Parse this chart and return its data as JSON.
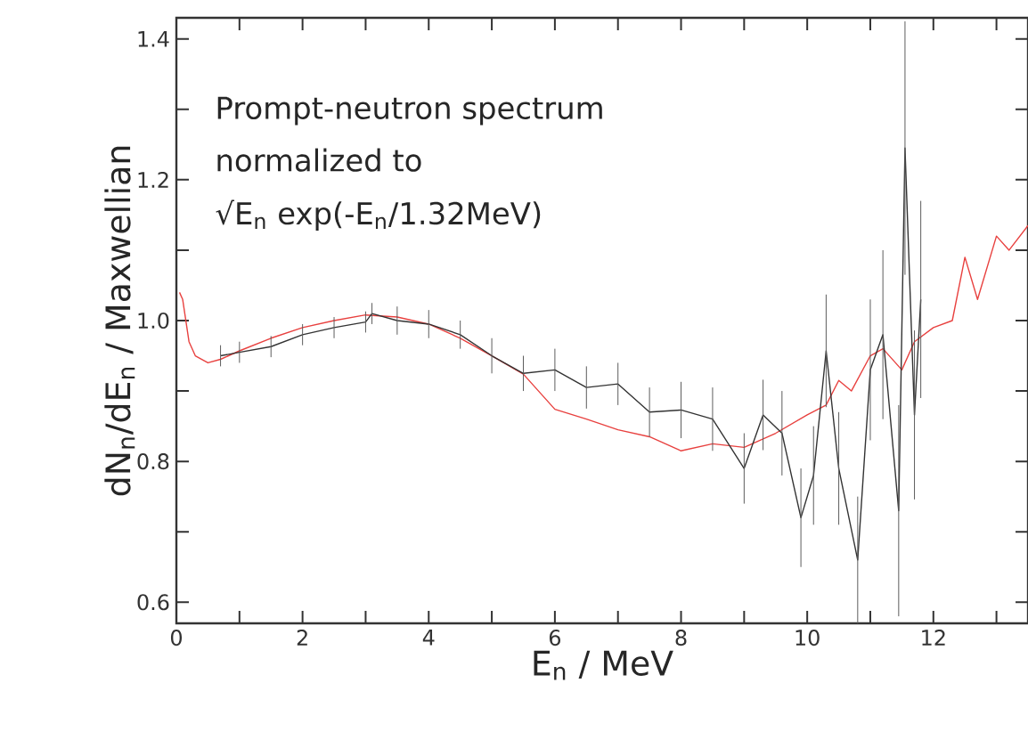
{
  "chart_data": {
    "type": "line",
    "xlabel": "E$_{n}$ / MeV",
    "ylabel": "dN$_{n}$/dE$_{n}$ / Maxwellian",
    "annotations": [
      "Prompt-neutron spectrum",
      "normalized to",
      "√E$_{n}$ exp(-E$_{n}$/1.32MeV)"
    ],
    "xlim": [
      0,
      13.5
    ],
    "ylim": [
      0.57,
      1.43
    ],
    "xticks": [
      0,
      {
        "value": 1,
        "label": null
      },
      2,
      {
        "value": 3,
        "label": null
      },
      4,
      {
        "value": 5,
        "label": null
      },
      6,
      {
        "value": 7,
        "label": null
      },
      8,
      {
        "value": 9,
        "label": null
      },
      10,
      {
        "value": 11,
        "label": null
      },
      12,
      {
        "value": 13,
        "label": null
      }
    ],
    "yticks": [
      {
        "value": 0.6,
        "label": "0.6"
      },
      {
        "value": 0.7,
        "label": null
      },
      {
        "value": 0.8,
        "label": "0.8"
      },
      {
        "value": 0.9,
        "label": null
      },
      {
        "value": 1.0,
        "label": "1.0"
      },
      {
        "value": 1.1,
        "label": null
      },
      {
        "value": 1.2,
        "label": "1.2"
      },
      {
        "value": 1.3,
        "label": null
      },
      {
        "value": 1.4,
        "label": "1.4"
      }
    ],
    "grid": false,
    "marker": "none",
    "line_style": "solid",
    "series": [
      {
        "color": "#e8413f",
        "x": [
          0.05,
          0.1,
          0.2,
          0.3,
          0.5,
          0.7,
          1,
          1.5,
          2,
          2.5,
          3,
          3.5,
          4,
          4.5,
          5,
          5.5,
          6,
          6.5,
          7,
          7.5,
          8,
          8.5,
          9,
          9.5,
          10,
          10.3,
          10.5,
          10.7,
          11,
          11.2,
          11.5,
          11.7,
          12,
          12.3,
          12.5,
          12.7,
          13,
          13.2,
          13.5
        ],
        "values": [
          1.04,
          1.03,
          0.97,
          0.95,
          0.94,
          0.945,
          0.957,
          0.975,
          0.99,
          1.0,
          1.008,
          1.005,
          0.995,
          0.975,
          0.95,
          0.924,
          0.874,
          0.86,
          0.845,
          0.835,
          0.815,
          0.825,
          0.82,
          0.84,
          0.866,
          0.88,
          0.915,
          0.9,
          0.95,
          0.96,
          0.93,
          0.97,
          0.99,
          1.0,
          1.09,
          1.03,
          1.12,
          1.1,
          1.135
        ]
      },
      {
        "color": "#333333",
        "x": [
          0.7,
          1,
          1.5,
          2,
          2.5,
          3,
          3.1,
          3.5,
          4,
          4.5,
          5,
          5.5,
          6,
          6.5,
          7,
          7.5,
          8,
          8.5,
          9,
          9.3,
          9.6,
          9.9,
          10.1,
          10.3,
          10.5,
          10.8,
          11,
          11.2,
          11.45,
          11.55,
          11.7,
          11.8
        ],
        "values": [
          0.95,
          0.955,
          0.963,
          0.98,
          0.99,
          0.998,
          1.01,
          1.0,
          0.995,
          0.98,
          0.95,
          0.925,
          0.93,
          0.905,
          0.91,
          0.87,
          0.873,
          0.86,
          0.79,
          0.866,
          0.84,
          0.72,
          0.78,
          0.957,
          0.79,
          0.66,
          0.93,
          0.98,
          0.73,
          1.245,
          0.866,
          1.03
        ],
        "errors": [
          0.015,
          0.015,
          0.015,
          0.015,
          0.015,
          0.015,
          0.015,
          0.02,
          0.02,
          0.02,
          0.025,
          0.025,
          0.03,
          0.03,
          0.03,
          0.035,
          0.04,
          0.045,
          0.05,
          0.05,
          0.06,
          0.07,
          0.07,
          0.08,
          0.08,
          0.09,
          0.1,
          0.12,
          0.15,
          0.18,
          0.12,
          0.14
        ]
      }
    ]
  }
}
